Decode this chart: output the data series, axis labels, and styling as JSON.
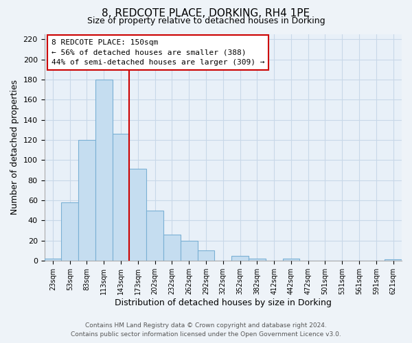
{
  "title": "8, REDCOTE PLACE, DORKING, RH4 1PE",
  "subtitle": "Size of property relative to detached houses in Dorking",
  "xlabel": "Distribution of detached houses by size in Dorking",
  "ylabel": "Number of detached properties",
  "bar_labels": [
    "23sqm",
    "53sqm",
    "83sqm",
    "113sqm",
    "143sqm",
    "173sqm",
    "202sqm",
    "232sqm",
    "262sqm",
    "292sqm",
    "322sqm",
    "352sqm",
    "382sqm",
    "412sqm",
    "442sqm",
    "472sqm",
    "501sqm",
    "531sqm",
    "561sqm",
    "591sqm",
    "621sqm"
  ],
  "bar_heights": [
    2,
    58,
    120,
    180,
    126,
    91,
    50,
    26,
    20,
    10,
    0,
    5,
    2,
    0,
    2,
    0,
    0,
    0,
    0,
    0,
    1
  ],
  "bar_color": "#c5ddf0",
  "bar_edge_color": "#7ab0d4",
  "vline_x_index": 4,
  "vline_color": "#cc0000",
  "annotation_title": "8 REDCOTE PLACE: 150sqm",
  "annotation_line1": "← 56% of detached houses are smaller (388)",
  "annotation_line2": "44% of semi-detached houses are larger (309) →",
  "box_edge_color": "#cc0000",
  "ylim": [
    0,
    225
  ],
  "yticks": [
    0,
    20,
    40,
    60,
    80,
    100,
    120,
    140,
    160,
    180,
    200,
    220
  ],
  "footer_line1": "Contains HM Land Registry data © Crown copyright and database right 2024.",
  "footer_line2": "Contains public sector information licensed under the Open Government Licence v3.0.",
  "bg_color": "#eef3f8",
  "plot_bg_color": "#e8f0f8",
  "grid_color": "#c8d8e8"
}
